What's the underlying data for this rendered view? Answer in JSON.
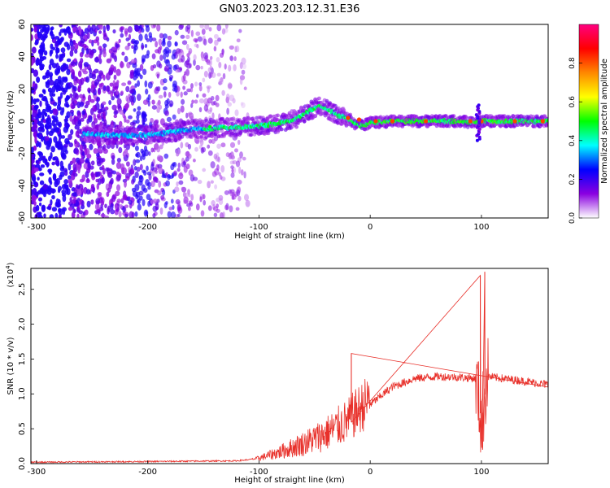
{
  "title": "GN03.2023.203.12.31.E36",
  "chart_data": [
    {
      "type": "heatmap",
      "xlabel": "Height of straight line (km)",
      "ylabel": "Frequency (Hz)",
      "xlim": [
        -305,
        160
      ],
      "ylim": [
        -60,
        60
      ],
      "xticks": [
        -300,
        -200,
        -100,
        0,
        100
      ],
      "yticks": [
        60,
        40,
        20,
        0,
        -20,
        -40,
        -60
      ],
      "colorbar": {
        "label": "Normalized spectral amplitude",
        "range": [
          0,
          1
        ],
        "ticks": [
          "0.0",
          "0.2",
          "0.4",
          "0.6",
          "0.8"
        ],
        "colors": [
          "#ffffff",
          "#8a00e0",
          "#0000ff",
          "#00ffff",
          "#00ff00",
          "#ffff00",
          "#ff8800",
          "#ff0000",
          "#ff0080"
        ]
      },
      "ridge": {
        "x": [
          -255,
          -220,
          -190,
          -160,
          -130,
          -100,
          -80,
          -65,
          -55,
          -45,
          -40,
          -30,
          -20,
          -15,
          -10,
          0,
          20,
          40,
          60,
          80,
          95,
          100,
          105,
          120,
          140,
          160
        ],
        "y": [
          -8,
          -9,
          -8,
          -5,
          -4,
          -3,
          -1,
          2,
          6,
          10,
          8,
          4,
          2,
          -1,
          -3,
          -1,
          0,
          0,
          0,
          0,
          -1,
          0,
          0,
          0,
          0,
          0
        ]
      }
    },
    {
      "type": "line",
      "xlabel": "Height of straight line (km)",
      "ylabel": "SNR (10 * v/v)",
      "yscale_label": "(x10",
      "yscale_exp": "4",
      "yscale_close": ")",
      "xlim": [
        -305,
        160
      ],
      "ylim": [
        0,
        2.8
      ],
      "xticks": [
        -300,
        -200,
        -100,
        0,
        100
      ],
      "yticks": [
        0.0,
        0.5,
        1.0,
        1.5,
        2.0,
        2.5
      ],
      "ytick_labels": [
        "0.0",
        "0.5",
        "1.0",
        "1.5",
        "2.0",
        "2.5"
      ],
      "color": "#e8302a",
      "envelope": {
        "x": [
          -305,
          -200,
          -120,
          -100,
          -80,
          -60,
          -40,
          -20,
          -10,
          0,
          20,
          40,
          60,
          80,
          95,
          100,
          105,
          120,
          140,
          160
        ],
        "y": [
          0.02,
          0.03,
          0.04,
          0.07,
          0.15,
          0.25,
          0.38,
          0.55,
          0.7,
          0.85,
          1.1,
          1.22,
          1.25,
          1.24,
          1.22,
          0.6,
          1.25,
          1.22,
          1.18,
          1.13
        ]
      },
      "peaks": [
        {
          "x": -17,
          "y": 1.58
        },
        {
          "x": 99,
          "y": 2.7
        },
        {
          "x": 101,
          "y": 0.2
        },
        {
          "x": 103,
          "y": 2.75
        }
      ]
    }
  ]
}
